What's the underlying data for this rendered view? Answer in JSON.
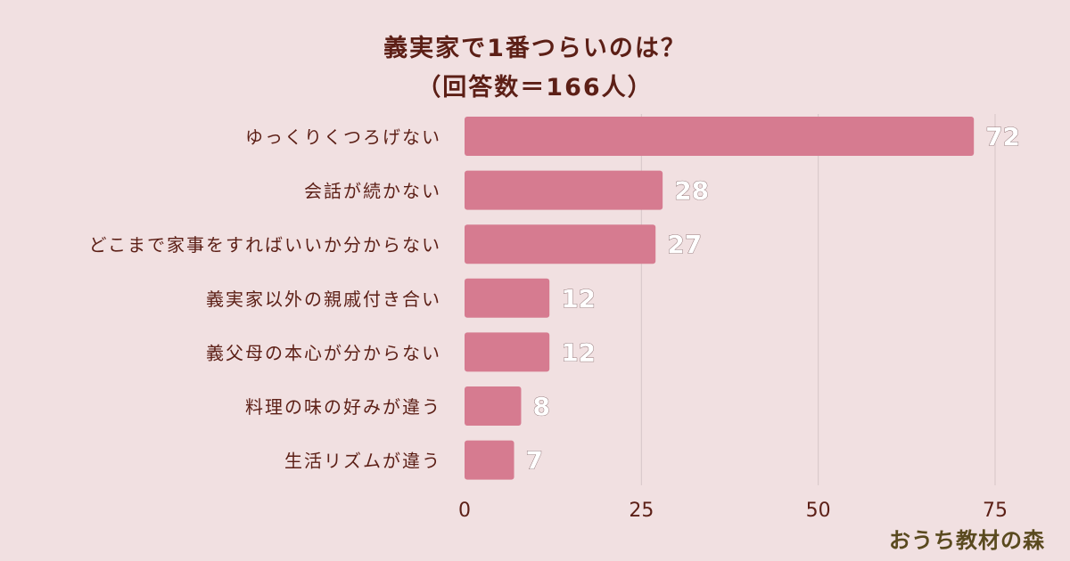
{
  "chart_data": {
    "type": "bar",
    "orientation": "horizontal",
    "title": "義実家で1番つらいのは？",
    "subtitle": "（回答数＝166人）",
    "categories": [
      "ゆっくりくつろげない",
      "会話が続かない",
      "どこまで家事をすればいいか分からない",
      "義実家以外の親戚付き合い",
      "義父母の本心が分からない",
      "料理の味の好みが違う",
      "生活リズムが違う"
    ],
    "values": [
      72,
      28,
      27,
      12,
      12,
      8,
      7
    ],
    "xlim": [
      0,
      75
    ],
    "xticks": [
      0,
      25,
      50,
      75
    ],
    "grid": true,
    "bar_color": "#d67b90",
    "label_color": "#5c1f16",
    "value_label_color": "#ffffff"
  },
  "brand": {
    "text": "おうち教材の森"
  }
}
